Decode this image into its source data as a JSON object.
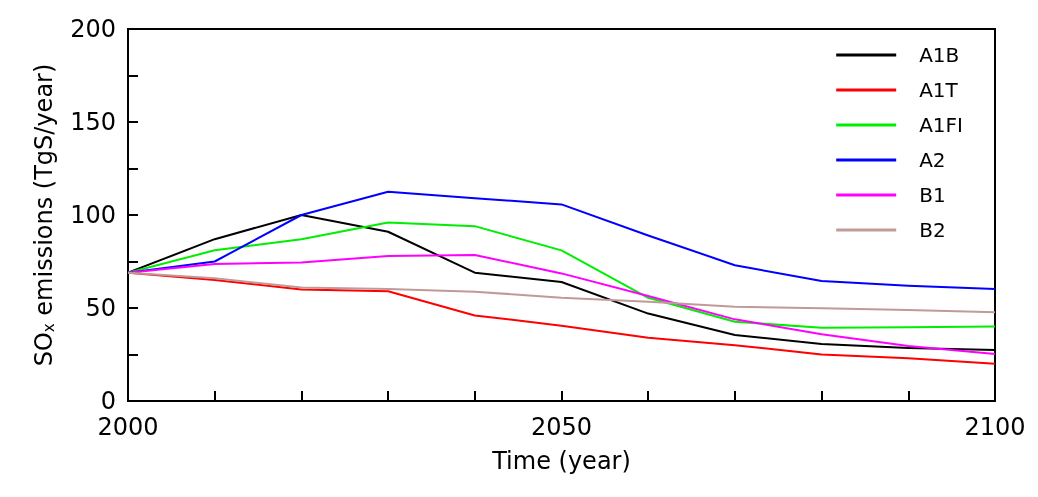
{
  "chart_data": {
    "type": "line",
    "xlabel": "Time (year)",
    "ylabel": "SO$_{x}$ emissions (TgS/year)",
    "x": [
      2000,
      2010,
      2020,
      2030,
      2040,
      2050,
      2060,
      2070,
      2080,
      2090,
      2100
    ],
    "series": [
      {
        "name": "A1B",
        "color": "#000000",
        "values": [
          69,
          87,
          100,
          91,
          69,
          64,
          47,
          35.5,
          30.6,
          28.5,
          27.4
        ]
      },
      {
        "name": "A1T",
        "color": "#ff0000",
        "values": [
          69,
          65,
          60,
          59,
          46,
          40.5,
          34,
          30,
          25,
          23,
          20
        ]
      },
      {
        "name": "A1FI",
        "color": "#00ee00",
        "values": [
          69,
          81,
          87,
          96,
          94,
          81,
          55.5,
          42.6,
          39.4,
          39.6,
          40
        ]
      },
      {
        "name": "A2",
        "color": "#0000ff",
        "values": [
          69,
          75,
          100,
          112.5,
          109,
          105.7,
          89,
          73,
          64.5,
          62,
          60.2
        ]
      },
      {
        "name": "B1",
        "color": "#ff00ff",
        "values": [
          69,
          73.7,
          74.4,
          78,
          78.5,
          68.6,
          56.5,
          43.9,
          35.9,
          29.6,
          25.3
        ]
      },
      {
        "name": "B2",
        "color": "#c09a98",
        "values": [
          69,
          66,
          61,
          60.2,
          58.8,
          55.5,
          53.4,
          50.7,
          49.8,
          48.9,
          47.7
        ]
      }
    ],
    "xlim": [
      2000,
      2100
    ],
    "xticks": [
      2000,
      {
        "value": 2010,
        "label": null
      },
      {
        "value": 2020,
        "label": null
      },
      {
        "value": 2030,
        "label": null
      },
      {
        "value": 2040,
        "label": null
      },
      2050,
      {
        "value": 2060,
        "label": null
      },
      {
        "value": 2070,
        "label": null
      },
      {
        "value": 2080,
        "label": null
      },
      {
        "value": 2090,
        "label": null
      },
      2100
    ],
    "ylim": [
      0,
      200
    ],
    "yticks": [
      0,
      {
        "value": 25,
        "label": null
      },
      50,
      {
        "value": 75,
        "label": null
      },
      100,
      {
        "value": 125,
        "label": null
      },
      150,
      {
        "value": 175,
        "label": null
      },
      200
    ],
    "legend": "top right",
    "grid": false,
    "marker": "none",
    "line_style": "solid"
  }
}
